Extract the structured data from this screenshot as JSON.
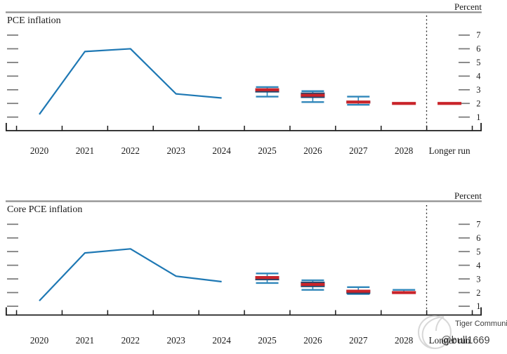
{
  "watermark": {
    "brand": "Tiger Community",
    "handle": "@bull1669",
    "color": "#c6c6c6"
  },
  "colors": {
    "history_line": "#1e78b4",
    "range_whisker": "#2f86ba",
    "central_tendency_box": "#20486e",
    "median_bar": "#c9242a",
    "frame": "#8f8f8f",
    "y_tick": "#787878",
    "axis": "#1b1b1b",
    "text": "#1a1a1a",
    "separator": "#2b2b2b"
  },
  "chart_data": [
    {
      "type": "line+boxwhisker",
      "title": "PCE inflation",
      "unit_label": "Percent",
      "x_categories": [
        "2020",
        "2021",
        "2022",
        "2023",
        "2024",
        "2025",
        "2026",
        "2027",
        "2028",
        "Longer run"
      ],
      "yticks": [
        1,
        2,
        3,
        4,
        5,
        6,
        7
      ],
      "ylim": [
        1,
        7
      ],
      "grid": false,
      "legend": "none",
      "separator_label": "Longer run",
      "history": {
        "years": [
          "2020",
          "2021",
          "2022",
          "2023",
          "2024"
        ],
        "values": [
          1.2,
          5.8,
          6.0,
          2.7,
          2.4
        ]
      },
      "projections": [
        {
          "year": "2025",
          "median": 3.0,
          "central_tendency": [
            2.8,
            3.1
          ],
          "range": [
            2.5,
            3.2
          ]
        },
        {
          "year": "2026",
          "median": 2.6,
          "central_tendency": [
            2.4,
            2.8
          ],
          "range": [
            2.1,
            2.9
          ]
        },
        {
          "year": "2027",
          "median": 2.1,
          "central_tendency": [
            2.0,
            2.2
          ],
          "range": [
            1.9,
            2.5
          ]
        },
        {
          "year": "2028",
          "median": 2.0,
          "central_tendency": [
            2.0,
            2.0
          ],
          "range": [
            2.0,
            2.0
          ]
        },
        {
          "year": "Longer run",
          "median": 2.0,
          "central_tendency": [
            2.0,
            2.0
          ],
          "range": [
            2.0,
            2.0
          ]
        }
      ]
    },
    {
      "type": "line+boxwhisker",
      "title": "Core PCE inflation",
      "unit_label": "Percent",
      "x_categories": [
        "2020",
        "2021",
        "2022",
        "2023",
        "2024",
        "2025",
        "2026",
        "2027",
        "2028",
        "Longer run"
      ],
      "yticks": [
        1,
        2,
        3,
        4,
        5,
        6,
        7
      ],
      "ylim": [
        1,
        7
      ],
      "grid": false,
      "legend": "none",
      "separator_label": "Longer run",
      "history": {
        "years": [
          "2020",
          "2021",
          "2022",
          "2023",
          "2024"
        ],
        "values": [
          1.4,
          4.9,
          5.2,
          3.2,
          2.8
        ]
      },
      "projections": [
        {
          "year": "2025",
          "median": 3.1,
          "central_tendency": [
            2.9,
            3.2
          ],
          "range": [
            2.7,
            3.4
          ]
        },
        {
          "year": "2026",
          "median": 2.6,
          "central_tendency": [
            2.4,
            2.8
          ],
          "range": [
            2.2,
            2.9
          ]
        },
        {
          "year": "2027",
          "median": 2.1,
          "central_tendency": [
            1.9,
            2.2
          ],
          "range": [
            1.9,
            2.4
          ]
        },
        {
          "year": "2028",
          "median": 2.0,
          "central_tendency": [
            2.0,
            2.1
          ],
          "range": [
            2.0,
            2.2
          ]
        }
      ]
    }
  ]
}
